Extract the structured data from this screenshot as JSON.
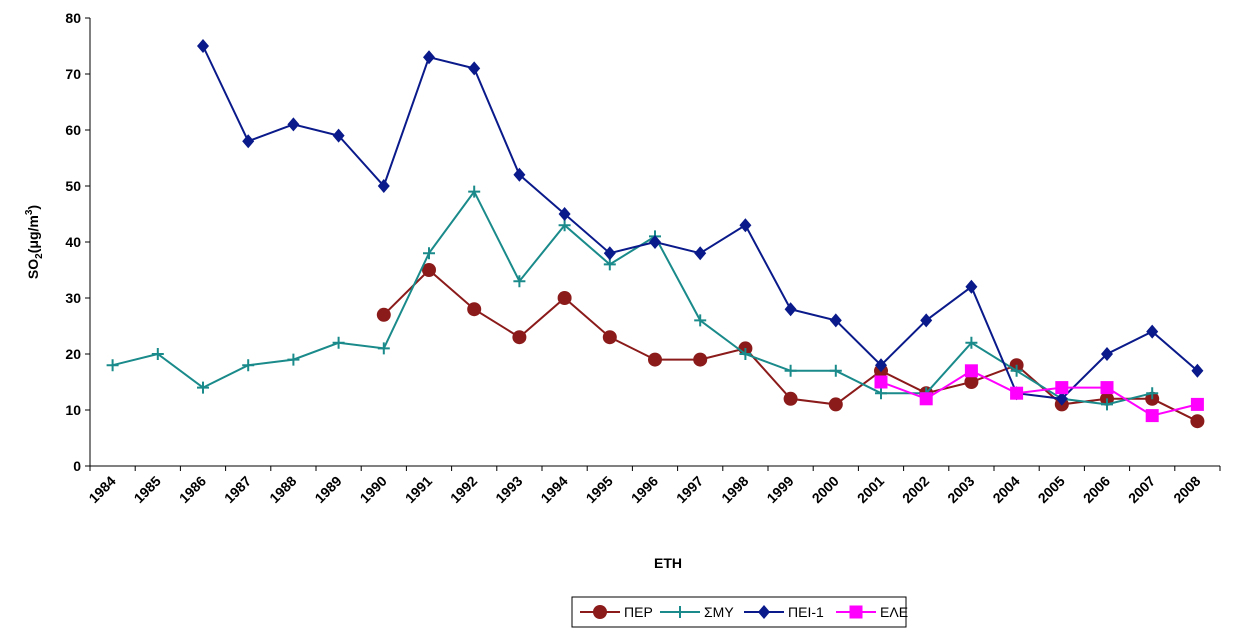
{
  "chart_data": {
    "type": "line",
    "categories": [
      "1984",
      "1985",
      "1986",
      "1987",
      "1988",
      "1989",
      "1990",
      "1991",
      "1992",
      "1993",
      "1994",
      "1995",
      "1996",
      "1997",
      "1998",
      "1999",
      "2000",
      "2001",
      "2002",
      "2003",
      "2004",
      "2005",
      "2006",
      "2007",
      "2008"
    ],
    "series": [
      {
        "name": "ΠΕΡ",
        "color": "#8b1a1a",
        "marker": "circle",
        "values": [
          null,
          null,
          null,
          null,
          null,
          null,
          27,
          35,
          28,
          23,
          30,
          23,
          19,
          19,
          21,
          12,
          11,
          17,
          13,
          15,
          18,
          11,
          12,
          12,
          8
        ]
      },
      {
        "name": "ΣΜΥ",
        "color": "#1a8a8a",
        "marker": "plus",
        "values": [
          18,
          20,
          14,
          18,
          19,
          22,
          21,
          38,
          49,
          33,
          43,
          36,
          41,
          26,
          20,
          17,
          17,
          13,
          13,
          22,
          17,
          12,
          11,
          13,
          null
        ]
      },
      {
        "name": "ΠΕΙ-1",
        "color": "#0a1a8a",
        "marker": "diamond",
        "values": [
          null,
          null,
          75,
          58,
          61,
          59,
          50,
          73,
          71,
          52,
          45,
          38,
          40,
          38,
          43,
          28,
          26,
          18,
          26,
          32,
          13,
          12,
          20,
          24,
          17
        ]
      },
      {
        "name": "ΕΛΕ",
        "color": "#ff00ff",
        "marker": "square",
        "values": [
          null,
          null,
          null,
          null,
          null,
          null,
          null,
          null,
          null,
          null,
          null,
          null,
          null,
          null,
          null,
          null,
          null,
          15,
          12,
          17,
          13,
          14,
          14,
          9,
          11
        ]
      }
    ],
    "x_label": "ΕΤΗ",
    "y_label": [
      "SO",
      "2",
      "(μg/m",
      "3",
      ")"
    ],
    "ylim": [
      0,
      80
    ],
    "yticks": [
      0,
      10,
      20,
      30,
      40,
      50,
      60,
      70,
      80
    ]
  }
}
